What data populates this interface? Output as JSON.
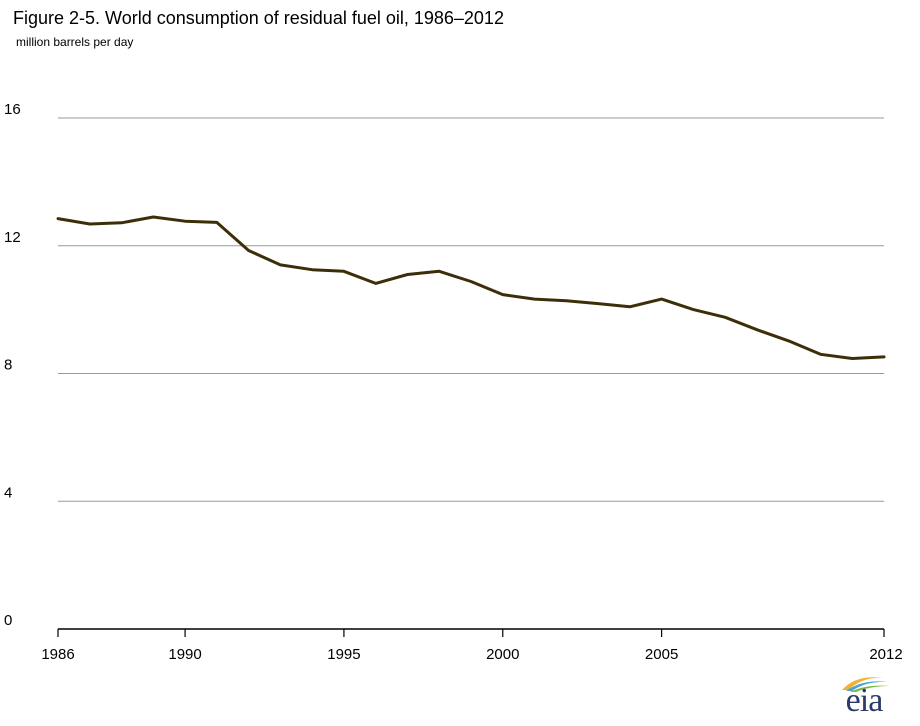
{
  "chart_data": {
    "type": "line",
    "title": "Figure 2-5. World consumption of residual fuel oil, 1986–2012",
    "ylabel": "million barrels per day",
    "xlabel": "",
    "x": [
      1986,
      1987,
      1988,
      1989,
      1990,
      1991,
      1992,
      1993,
      1994,
      1995,
      1996,
      1997,
      1998,
      1999,
      2000,
      2001,
      2002,
      2003,
      2004,
      2005,
      2006,
      2007,
      2008,
      2009,
      2010,
      2011,
      2012
    ],
    "series": [
      {
        "values": [
          12.85,
          12.68,
          12.72,
          12.9,
          12.77,
          12.73,
          11.85,
          11.4,
          11.25,
          11.2,
          10.82,
          11.1,
          11.2,
          10.88,
          10.47,
          10.33,
          10.28,
          10.19,
          10.09,
          10.33,
          10.0,
          9.76,
          9.37,
          9.02,
          8.6,
          8.47,
          8.52
        ],
        "color": "#3d2e0a"
      }
    ],
    "xlim": [
      1986,
      2012
    ],
    "ylim": [
      0,
      16
    ],
    "x_ticks": [
      "1986",
      "1990",
      "1995",
      "2000",
      "2005",
      "2012"
    ],
    "y_ticks": [
      "0",
      "4",
      "8",
      "12",
      "16"
    ],
    "grid": "horizontal",
    "legend": "none"
  },
  "logo": {
    "text": "eia",
    "colors": [
      "#2b3a67",
      "#f2b134",
      "#4aa5d6",
      "#7ab648"
    ]
  }
}
